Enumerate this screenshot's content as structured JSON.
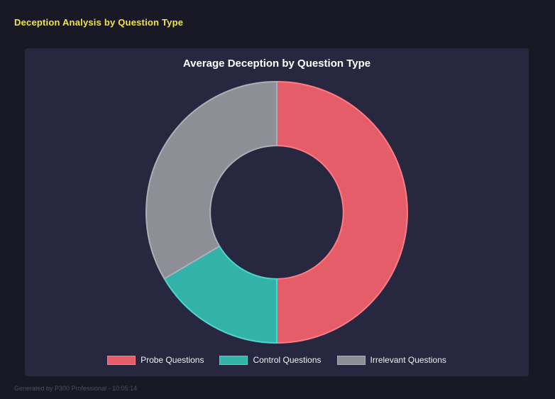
{
  "page": {
    "header_title": "Deception Analysis by Question Type",
    "footer": "Generated by P300 Professional - 10:05:14"
  },
  "chart_data": {
    "type": "pie",
    "subtype": "donut",
    "title": "Average Deception by Question Type",
    "categories": [
      "Probe Questions",
      "Control Questions",
      "Irrelevant Questions"
    ],
    "values": [
      50.0,
      16.5,
      33.5
    ],
    "unit": "percent-of-circle",
    "colors": [
      "#e55d68",
      "#33b2aa",
      "#8e8e96"
    ],
    "border_colors": [
      "#ff7b84",
      "#4fd6cc",
      "#aeaeb6"
    ],
    "legend_position": "bottom",
    "donut_hole_ratio": 0.51,
    "start_angle_deg": 0,
    "direction": "clockwise"
  },
  "colors": {
    "page_bg": "#191926",
    "panel_bg": "#272740",
    "header_text": "#f2e53c",
    "title_text": "#ffffff",
    "legend_text": "#f0f0f2",
    "footer_text": "#4e4e5a"
  }
}
